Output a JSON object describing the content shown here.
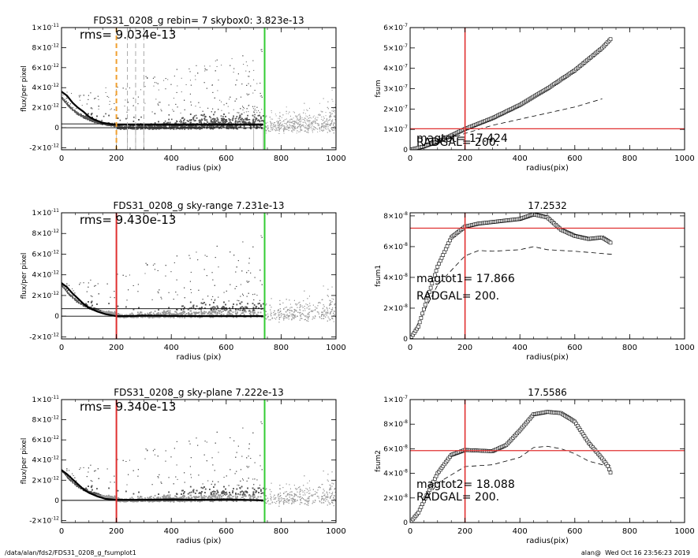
{
  "footer": {
    "path": "/data/alan/fds2/FDS31_0208_g_fsumplot1",
    "user_time": "alan@  Wed Oct 16 23:56:23 2019"
  },
  "colors": {
    "vline_red": "#e03030",
    "vline_green": "#33cc33",
    "hline_red": "#e03030",
    "orange": "#f0a030"
  },
  "chart_data": [
    {
      "id": "p1",
      "type": "scatter",
      "title": "FDS31_0208_g rebin= 7    skybox0:  3.823e-13",
      "annotation": "rms= 9.034e-13",
      "xlabel": "radius (pix)",
      "ylabel": "flux/per pixel",
      "xlim": [
        0,
        1000
      ],
      "ylim": [
        -2.2e-12,
        1e-11
      ],
      "xticks": [
        0,
        200,
        400,
        600,
        800,
        1000
      ],
      "xticklabels": [
        "0",
        "200",
        "400",
        "600",
        "800",
        "1000"
      ],
      "yticks": [
        -2e-12,
        0,
        2e-12,
        4e-12,
        6e-12,
        8e-12,
        1e-11
      ],
      "ytick_base": [
        "-2×10",
        "0",
        "2×10",
        "4×10",
        "6×10",
        "8×10",
        "1×10"
      ],
      "ytick_exp": [
        "-12",
        "",
        "-12",
        "-12",
        "-12",
        "-12",
        "-11"
      ],
      "profile": [
        [
          0,
          3.6e-12
        ],
        [
          20,
          3.2e-12
        ],
        [
          40,
          2.5e-12
        ],
        [
          60,
          2e-12
        ],
        [
          80,
          1.6e-12
        ],
        [
          100,
          1.1e-12
        ],
        [
          120,
          8e-13
        ],
        [
          150,
          5e-13
        ],
        [
          180,
          3.5e-13
        ],
        [
          200,
          3e-13
        ],
        [
          300,
          3e-13
        ],
        [
          500,
          3e-13
        ],
        [
          735,
          3e-13
        ]
      ],
      "hlines": [
        3.8e-13,
        0
      ],
      "vlines": [
        {
          "x": 740,
          "color": "green"
        },
        {
          "x": 200,
          "color": "orange",
          "dash": true
        },
        {
          "x": 240,
          "color": "gray",
          "dash": true
        },
        {
          "x": 270,
          "color": "gray",
          "dash": true
        },
        {
          "x": 300,
          "color": "gray",
          "dash": true
        }
      ]
    },
    {
      "id": "p2",
      "type": "line",
      "title": "",
      "xlabel": "radius(pix)",
      "ylabel": "fsum",
      "xlim": [
        0,
        1000
      ],
      "ylim": [
        0,
        6e-07
      ],
      "xticks": [
        0,
        200,
        400,
        600,
        800,
        1000
      ],
      "xticklabels": [
        "0",
        "200",
        "400",
        "600",
        "800",
        "1000"
      ],
      "yticks": [
        0,
        1e-07,
        2e-07,
        3e-07,
        4e-07,
        5e-07,
        6e-07
      ],
      "ytick_base": [
        "0",
        "1×10",
        "2×10",
        "3×10",
        "4×10",
        "5×10",
        "6×10"
      ],
      "ytick_exp": [
        "",
        "-7",
        "-7",
        "-7",
        "-7",
        "-7",
        "-7"
      ],
      "curve": [
        [
          0,
          0
        ],
        [
          50,
          1.6e-08
        ],
        [
          100,
          4e-08
        ],
        [
          150,
          7e-08
        ],
        [
          200,
          1.02e-07
        ],
        [
          300,
          1.55e-07
        ],
        [
          400,
          2.2e-07
        ],
        [
          500,
          3e-07
        ],
        [
          600,
          3.9e-07
        ],
        [
          700,
          5e-07
        ],
        [
          735,
          5.5e-07
        ]
      ],
      "dashed": [
        [
          0,
          0
        ],
        [
          100,
          3.5e-08
        ],
        [
          200,
          8e-08
        ],
        [
          300,
          1.2e-07
        ],
        [
          400,
          1.5e-07
        ],
        [
          500,
          1.8e-07
        ],
        [
          600,
          2.1e-07
        ],
        [
          700,
          2.5e-07
        ]
      ],
      "hline": 1.03e-07,
      "vline": 200,
      "text1": "magtot=  17.424",
      "text2": "RADGAL=   200."
    },
    {
      "id": "p3",
      "type": "scatter",
      "title": "FDS31_0208_g sky-range  7.231e-13",
      "annotation": "rms= 9.430e-13",
      "xlabel": "radius (pix)",
      "ylabel": "flux/per pixel",
      "xlim": [
        0,
        1000
      ],
      "ylim": [
        -2.2e-12,
        1e-11
      ],
      "xticks": [
        0,
        200,
        400,
        600,
        800,
        1000
      ],
      "xticklabels": [
        "0",
        "200",
        "400",
        "600",
        "800",
        "1000"
      ],
      "yticks": [
        -2e-12,
        0,
        2e-12,
        4e-12,
        6e-12,
        8e-12,
        1e-11
      ],
      "ytick_base": [
        "-2×10",
        "0",
        "2×10",
        "4×10",
        "6×10",
        "8×10",
        "1×10"
      ],
      "ytick_exp": [
        "-12",
        "",
        "-12",
        "-12",
        "-12",
        "-12",
        "-11"
      ],
      "profile": [
        [
          0,
          3.2e-12
        ],
        [
          20,
          2.8e-12
        ],
        [
          40,
          2.2e-12
        ],
        [
          60,
          1.7e-12
        ],
        [
          80,
          1.2e-12
        ],
        [
          100,
          8e-13
        ],
        [
          130,
          4.5e-13
        ],
        [
          160,
          2e-13
        ],
        [
          200,
          0.0
        ],
        [
          250,
          0.0
        ],
        [
          300,
          5e-14
        ],
        [
          500,
          0.0
        ],
        [
          735,
          0.0
        ]
      ],
      "hlines": [
        7.2e-13,
        0
      ],
      "vlines": [
        {
          "x": 200,
          "color": "red"
        },
        {
          "x": 740,
          "color": "green"
        }
      ]
    },
    {
      "id": "p4",
      "type": "line",
      "title": "17.2532",
      "xlabel": "radius(pix)",
      "ylabel": "fsum1",
      "xlim": [
        0,
        1000
      ],
      "ylim": [
        0,
        8.2e-08
      ],
      "xticks": [
        0,
        200,
        400,
        600,
        800,
        1000
      ],
      "xticklabels": [
        "0",
        "200",
        "400",
        "600",
        "800",
        "1000"
      ],
      "yticks": [
        0,
        2e-08,
        4e-08,
        6e-08,
        8e-08
      ],
      "ytick_base": [
        "0",
        "2×10",
        "4×10",
        "6×10",
        "8×10"
      ],
      "ytick_exp": [
        "",
        "-8",
        "-8",
        "-8",
        "-8"
      ],
      "curve": [
        [
          0,
          0
        ],
        [
          30,
          8e-09
        ],
        [
          60,
          2.5e-08
        ],
        [
          100,
          4.7e-08
        ],
        [
          150,
          6.6e-08
        ],
        [
          200,
          7.3e-08
        ],
        [
          250,
          7.5e-08
        ],
        [
          300,
          7.6e-08
        ],
        [
          350,
          7.7e-08
        ],
        [
          400,
          7.8e-08
        ],
        [
          450,
          8.1e-08
        ],
        [
          500,
          7.9e-08
        ],
        [
          550,
          7.1e-08
        ],
        [
          600,
          6.7e-08
        ],
        [
          650,
          6.5e-08
        ],
        [
          700,
          6.6e-08
        ],
        [
          735,
          6.2e-08
        ]
      ],
      "dashed": [
        [
          0,
          0
        ],
        [
          100,
          3.5e-08
        ],
        [
          200,
          5.4e-08
        ],
        [
          250,
          5.75e-08
        ],
        [
          300,
          5.7e-08
        ],
        [
          400,
          5.8e-08
        ],
        [
          450,
          6e-08
        ],
        [
          500,
          5.8e-08
        ],
        [
          600,
          5.7e-08
        ],
        [
          735,
          5.5e-08
        ]
      ],
      "hline": 7.2e-08,
      "vline": 200,
      "text1": "magtot1=  17.866",
      "text2": "RADGAL=   200."
    },
    {
      "id": "p5",
      "type": "scatter",
      "title": "FDS31_0208_g sky-plane  7.222e-13",
      "annotation": "rms= 9.340e-13",
      "xlabel": "radius (pix)",
      "ylabel": "flux/per pixel",
      "xlim": [
        0,
        1000
      ],
      "ylim": [
        -2.2e-12,
        1e-11
      ],
      "xticks": [
        0,
        200,
        400,
        600,
        800,
        1000
      ],
      "xticklabels": [
        "0",
        "200",
        "400",
        "600",
        "800",
        "1000"
      ],
      "yticks": [
        -2e-12,
        0,
        2e-12,
        4e-12,
        6e-12,
        8e-12,
        1e-11
      ],
      "ytick_base": [
        "-2×10",
        "0",
        "2×10",
        "4×10",
        "6×10",
        "8×10",
        "1×10"
      ],
      "ytick_exp": [
        "-12",
        "",
        "-12",
        "-12",
        "-12",
        "-12",
        "-11"
      ],
      "profile": [
        [
          0,
          3e-12
        ],
        [
          20,
          2.6e-12
        ],
        [
          40,
          2.1e-12
        ],
        [
          60,
          1.6e-12
        ],
        [
          80,
          1.1e-12
        ],
        [
          100,
          7.5e-13
        ],
        [
          130,
          4e-13
        ],
        [
          160,
          1.5e-13
        ],
        [
          200,
          5e-14
        ],
        [
          300,
          5e-14
        ],
        [
          400,
          1e-13
        ],
        [
          500,
          5e-14
        ],
        [
          600,
          1e-13
        ],
        [
          735,
          0.0
        ]
      ],
      "hlines": [
        0
      ],
      "vlines": [
        {
          "x": 200,
          "color": "red"
        },
        {
          "x": 740,
          "color": "green"
        }
      ]
    },
    {
      "id": "p6",
      "type": "line",
      "title": "17.5586",
      "xlabel": "radius(pix)",
      "ylabel": "fsum2",
      "xlim": [
        0,
        1000
      ],
      "ylim": [
        0,
        1e-07
      ],
      "xticks": [
        0,
        200,
        400,
        600,
        800,
        1000
      ],
      "xticklabels": [
        "0",
        "200",
        "400",
        "600",
        "800",
        "1000"
      ],
      "yticks": [
        0,
        2e-08,
        4e-08,
        6e-08,
        8e-08,
        1e-07
      ],
      "ytick_base": [
        "0",
        "2×10",
        "4×10",
        "6×10",
        "8×10",
        "1×10"
      ],
      "ytick_exp": [
        "",
        "-8",
        "-8",
        "-8",
        "-8",
        "-7"
      ],
      "curve": [
        [
          0,
          0
        ],
        [
          30,
          8e-09
        ],
        [
          60,
          2.2e-08
        ],
        [
          100,
          4e-08
        ],
        [
          150,
          5.5e-08
        ],
        [
          200,
          5.9e-08
        ],
        [
          250,
          5.85e-08
        ],
        [
          300,
          5.8e-08
        ],
        [
          350,
          6.3e-08
        ],
        [
          400,
          7.5e-08
        ],
        [
          450,
          8.8e-08
        ],
        [
          500,
          9e-08
        ],
        [
          550,
          8.9e-08
        ],
        [
          600,
          8.2e-08
        ],
        [
          650,
          6.5e-08
        ],
        [
          700,
          5.2e-08
        ],
        [
          720,
          4.6e-08
        ],
        [
          735,
          3.8e-08
        ]
      ],
      "dashed": [
        [
          0,
          0
        ],
        [
          100,
          3.2e-08
        ],
        [
          200,
          4.55e-08
        ],
        [
          300,
          4.7e-08
        ],
        [
          400,
          5.3e-08
        ],
        [
          450,
          6.1e-08
        ],
        [
          500,
          6.2e-08
        ],
        [
          550,
          6e-08
        ],
        [
          600,
          5.6e-08
        ],
        [
          650,
          5e-08
        ],
        [
          700,
          4.7e-08
        ],
        [
          735,
          4.6e-08
        ]
      ],
      "hline": 5.85e-08,
      "vline": 200,
      "text1": "magtot2=  18.088",
      "text2": "RADGAL=   200."
    }
  ]
}
